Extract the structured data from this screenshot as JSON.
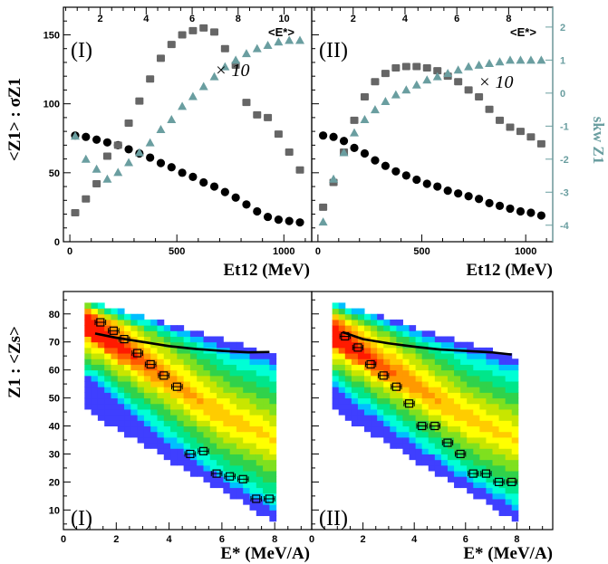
{
  "colors": {
    "mean": "#000000",
    "sigma": "#666666",
    "skew": "#6a9ea0",
    "curve": "#000000",
    "heat": [
      "#2b00d6",
      "#3f3fff",
      "#00bfff",
      "#00ffd5",
      "#00e68a",
      "#30d24b",
      "#7fe01f",
      "#c8e600",
      "#ffff00",
      "#ffcc00",
      "#ff9900",
      "#ff5a00",
      "#ff1a00"
    ]
  },
  "icons": {
    "errorbar_marker": "open-square-with-horizontal-error-bar"
  },
  "chart_data": [
    {
      "id": "top-I",
      "type": "scatter",
      "panel_label": "(I)",
      "factor_label": "× 10",
      "top_axis_title": "<E*>",
      "xlabel": "Et12 (MeV)",
      "ylabel": "<Z1> : σZ1",
      "xlim": [
        -30,
        1130
      ],
      "ylim": [
        0,
        170
      ],
      "top_axis_range": [
        0.4,
        11.2
      ],
      "x_ticks": [
        "0",
        "500",
        "1000"
      ],
      "y_ticks": [
        "0",
        "50",
        "100",
        "150"
      ],
      "top_ticks": [
        "2",
        "4",
        "6",
        "8",
        "10"
      ],
      "right_ylabel": "skw Z1",
      "right_ylim": [
        -4.5,
        2.6
      ],
      "right_ticks": [
        "-4",
        "-3",
        "-2",
        "-1",
        "0",
        "1",
        "2"
      ],
      "series": [
        {
          "name": "<Z1>",
          "marker": "circle",
          "x": [
            25,
            75,
            125,
            175,
            225,
            275,
            325,
            375,
            425,
            475,
            525,
            575,
            625,
            675,
            725,
            775,
            825,
            875,
            925,
            975,
            1025,
            1075
          ],
          "y": [
            77,
            76,
            74,
            72,
            70,
            67,
            64,
            61,
            57,
            54,
            50,
            47,
            43,
            40,
            36,
            32,
            27,
            22,
            18,
            16,
            15,
            14
          ]
        },
        {
          "name": "σZ1 × 10",
          "marker": "square",
          "x": [
            25,
            75,
            125,
            175,
            225,
            275,
            325,
            375,
            425,
            475,
            525,
            575,
            625,
            675,
            725,
            775,
            825,
            875,
            925,
            975,
            1025,
            1075
          ],
          "y": [
            21,
            31,
            42,
            62,
            70,
            86,
            102,
            118,
            133,
            143,
            150,
            153,
            155,
            152,
            140,
            128,
            101,
            92,
            90,
            78,
            65,
            52
          ]
        },
        {
          "name": "skw Z1",
          "marker": "triangle",
          "x": [
            25,
            75,
            125,
            175,
            225,
            275,
            325,
            375,
            425,
            475,
            525,
            575,
            625,
            675,
            725,
            775,
            825,
            875,
            925,
            975,
            1025,
            1075
          ],
          "y": [
            -1.3,
            -2.0,
            -2.3,
            -2.6,
            -2.4,
            -2.1,
            -1.8,
            -1.5,
            -1.1,
            -0.8,
            -0.4,
            -0.1,
            0.2,
            0.5,
            0.8,
            1.0,
            1.2,
            1.35,
            1.45,
            1.55,
            1.6,
            1.6
          ]
        }
      ]
    },
    {
      "id": "top-II",
      "type": "scatter",
      "panel_label": "(II)",
      "factor_label": "× 10",
      "top_axis_title": "<E*>",
      "xlabel": "Et12 (MeV)",
      "ylabel": "",
      "xlim": [
        -30,
        1130
      ],
      "ylim": [
        0,
        170
      ],
      "top_axis_range": [
        0.4,
        9.7
      ],
      "x_ticks": [
        "0",
        "500",
        "1000"
      ],
      "top_ticks": [
        "2",
        "4",
        "6",
        "8"
      ],
      "right_ylabel": "skw Z1",
      "right_ylim": [
        -4.5,
        2.6
      ],
      "right_ticks": [
        "-4",
        "-3",
        "-2",
        "-1",
        "0",
        "1",
        "2"
      ],
      "series": [
        {
          "name": "<Z1>",
          "marker": "circle",
          "x": [
            25,
            75,
            125,
            175,
            225,
            275,
            325,
            375,
            425,
            475,
            525,
            575,
            625,
            675,
            725,
            775,
            825,
            875,
            925,
            975,
            1025,
            1075
          ],
          "y": [
            77,
            76,
            73,
            68,
            64,
            59,
            55,
            51,
            48,
            45,
            42,
            40,
            37,
            35,
            33,
            31,
            28,
            26,
            24,
            22,
            21,
            19
          ]
        },
        {
          "name": "σZ1 × 10",
          "marker": "square",
          "x": [
            25,
            75,
            125,
            175,
            225,
            275,
            325,
            375,
            425,
            475,
            525,
            575,
            625,
            675,
            725,
            775,
            825,
            875,
            925,
            975,
            1025,
            1075
          ],
          "y": [
            25,
            43,
            65,
            88,
            105,
            116,
            122,
            126,
            127,
            127,
            126,
            124,
            120,
            116,
            110,
            105,
            96,
            88,
            83,
            80,
            76,
            71
          ]
        },
        {
          "name": "skw Z1",
          "marker": "triangle",
          "x": [
            25,
            75,
            125,
            175,
            225,
            275,
            325,
            375,
            425,
            475,
            525,
            575,
            625,
            675,
            725,
            775,
            825,
            875,
            925,
            975,
            1025,
            1075
          ],
          "y": [
            -3.9,
            -2.6,
            -1.8,
            -1.2,
            -0.8,
            -0.5,
            -0.25,
            -0.05,
            0.1,
            0.25,
            0.4,
            0.5,
            0.6,
            0.7,
            0.8,
            0.85,
            0.9,
            0.95,
            1.0,
            1.0,
            1.0,
            1.0
          ]
        }
      ]
    },
    {
      "id": "bottom-I",
      "type": "heatmap",
      "panel_label": "(I)",
      "xlabel": "E* (MeV/A)",
      "ylabel": "Z1 : <Zs>",
      "xlim": [
        0,
        9.4
      ],
      "ylim": [
        3,
        88
      ],
      "x_ticks": [
        "0",
        "2",
        "4",
        "6",
        "8"
      ],
      "y_ticks": [
        "10",
        "20",
        "30",
        "40",
        "50",
        "60",
        "70",
        "80"
      ],
      "band": {
        "E0": 0.8,
        "E1": 8.0,
        "top0": 84,
        "top1": 64,
        "bot0": 46,
        "bot1": 6,
        "peakZ": 76,
        "peakE": 1.3
      },
      "curve": {
        "x": [
          1.2,
          2.0,
          3.0,
          4.0,
          5.0,
          6.0,
          7.0,
          7.8
        ],
        "y": [
          73,
          71.5,
          70,
          68.5,
          67.5,
          66.8,
          66.3,
          66.4
        ]
      },
      "markers": {
        "x": [
          1.4,
          1.9,
          2.3,
          2.8,
          3.3,
          3.8,
          4.3,
          4.8,
          5.3,
          5.8,
          6.3,
          6.8,
          7.3,
          7.8
        ],
        "y": [
          77,
          74,
          71,
          66,
          62,
          58,
          54,
          30,
          31,
          23,
          22,
          21,
          14,
          14
        ],
        "xerr": [
          0.2,
          0.2,
          0.2,
          0.2,
          0.2,
          0.2,
          0.2,
          0.2,
          0.2,
          0.2,
          0.2,
          0.2,
          0.2,
          0.2
        ]
      }
    },
    {
      "id": "bottom-II",
      "type": "heatmap",
      "panel_label": "(II)",
      "xlabel": "E* (MeV/A)",
      "ylabel": "",
      "xlim": [
        0,
        9.4
      ],
      "ylim": [
        3,
        88
      ],
      "x_ticks": [
        "0",
        "2",
        "4",
        "6",
        "8"
      ],
      "band": {
        "E0": 0.8,
        "E1": 8.0,
        "top0": 83,
        "top1": 63,
        "bot0": 46,
        "bot1": 6,
        "peakZ": 72,
        "peakE": 1.2
      },
      "curve": {
        "x": [
          1.2,
          2.0,
          3.0,
          4.0,
          5.0,
          6.0,
          7.0,
          7.8
        ],
        "y": [
          73.5,
          71.0,
          69.5,
          68.3,
          67.3,
          66.8,
          66.3,
          65.5
        ]
      },
      "markers": {
        "x": [
          1.3,
          1.8,
          2.3,
          2.8,
          3.3,
          3.8,
          4.3,
          4.8,
          5.3,
          5.8,
          6.3,
          6.8,
          7.3,
          7.8
        ],
        "y": [
          72,
          68,
          62,
          58,
          54,
          48,
          40,
          40,
          34,
          30,
          23,
          23,
          20,
          20
        ],
        "xerr": [
          0.2,
          0.2,
          0.2,
          0.2,
          0.2,
          0.2,
          0.2,
          0.2,
          0.2,
          0.2,
          0.2,
          0.2,
          0.2,
          0.2
        ]
      }
    }
  ]
}
